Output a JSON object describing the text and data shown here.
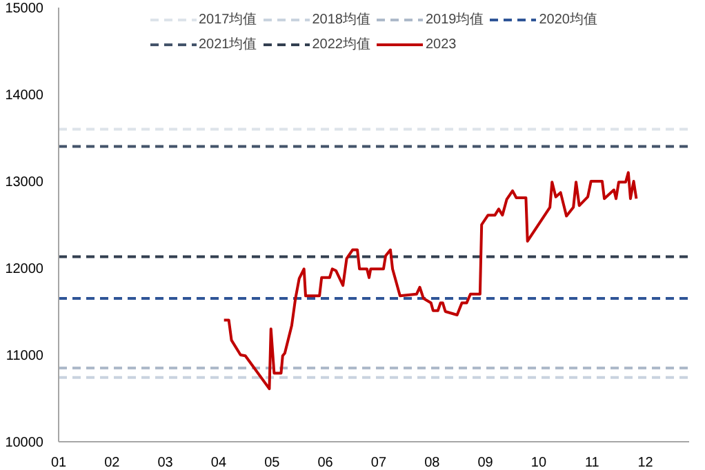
{
  "chart_data": {
    "type": "line",
    "xlim": [
      1,
      12.82
    ],
    "ylim": [
      10000,
      15000
    ],
    "xticks": [
      {
        "value": 1,
        "label": "01"
      },
      {
        "value": 2,
        "label": "02"
      },
      {
        "value": 3,
        "label": "03"
      },
      {
        "value": 4,
        "label": "04"
      },
      {
        "value": 5,
        "label": "05"
      },
      {
        "value": 6,
        "label": "06"
      },
      {
        "value": 7,
        "label": "07"
      },
      {
        "value": 8,
        "label": "08"
      },
      {
        "value": 9,
        "label": "09"
      },
      {
        "value": 10,
        "label": "10"
      },
      {
        "value": 11,
        "label": "11"
      },
      {
        "value": 12,
        "label": "12"
      }
    ],
    "yticks": [
      10000,
      11000,
      12000,
      13000,
      14000,
      15000
    ],
    "grid": false,
    "legend": "top",
    "marker": "none",
    "line_style": "solid",
    "ref_lines": [
      {
        "axis": "y",
        "value": 13600,
        "label": "2017均值",
        "color": "#dde3ea",
        "line_style": "dashed"
      },
      {
        "axis": "y",
        "value": 10740,
        "label": "2018均值",
        "color": "#c9d3df",
        "line_style": "dashed"
      },
      {
        "axis": "y",
        "value": 10850,
        "label": "2019均值",
        "color": "#adb9ca",
        "line_style": "dashed"
      },
      {
        "axis": "y",
        "value": 11650,
        "label": "2020均值",
        "color": "#2f5597",
        "line_style": "dashed"
      },
      {
        "axis": "y",
        "value": 13400,
        "label": "2021均值",
        "color": "#44546a",
        "line_style": "dashed"
      },
      {
        "axis": "y",
        "value": 12130,
        "label": "2022均值",
        "color": "#333f50",
        "line_style": "dashed"
      }
    ],
    "series": [
      {
        "name": "2023",
        "color": "#c00000",
        "x": [
          4.1,
          4.19,
          4.24,
          4.41,
          4.5,
          4.95,
          4.98,
          5.04,
          5.17,
          5.2,
          5.24,
          5.37,
          5.44,
          5.51,
          5.6,
          5.63,
          5.89,
          5.93,
          6.08,
          6.13,
          6.2,
          6.33,
          6.4,
          6.51,
          6.6,
          6.64,
          6.78,
          6.82,
          6.85,
          7.09,
          7.13,
          7.22,
          7.26,
          7.4,
          7.71,
          7.77,
          7.84,
          7.98,
          8.02,
          8.11,
          8.16,
          8.2,
          8.25,
          8.47,
          8.56,
          8.65,
          8.72,
          8.9,
          8.93,
          9.05,
          9.18,
          9.25,
          9.32,
          9.4,
          9.51,
          9.58,
          9.76,
          9.79,
          10.21,
          10.25,
          10.32,
          10.41,
          10.52,
          10.65,
          10.7,
          10.76,
          10.92,
          10.98,
          11.19,
          11.23,
          11.41,
          11.45,
          11.5,
          11.63,
          11.68,
          11.72,
          11.78,
          11.83
        ],
        "values": [
          11400,
          11400,
          11170,
          11000,
          10990,
          10610,
          11300,
          10790,
          10790,
          10990,
          11020,
          11340,
          11650,
          11880,
          11990,
          11680,
          11680,
          11890,
          11890,
          11990,
          11970,
          11800,
          12110,
          12210,
          12210,
          11990,
          11990,
          11890,
          11990,
          11990,
          12140,
          12210,
          11990,
          11680,
          11700,
          11780,
          11650,
          11600,
          11510,
          11510,
          11600,
          11600,
          11500,
          11460,
          11600,
          11600,
          11700,
          11700,
          12500,
          12610,
          12610,
          12680,
          12610,
          12790,
          12890,
          12810,
          12810,
          12310,
          12700,
          12990,
          12820,
          12870,
          12600,
          12700,
          12990,
          12720,
          12820,
          13000,
          13000,
          12800,
          12900,
          12800,
          12990,
          12990,
          13100,
          12800,
          13000,
          12800
        ]
      }
    ]
  }
}
